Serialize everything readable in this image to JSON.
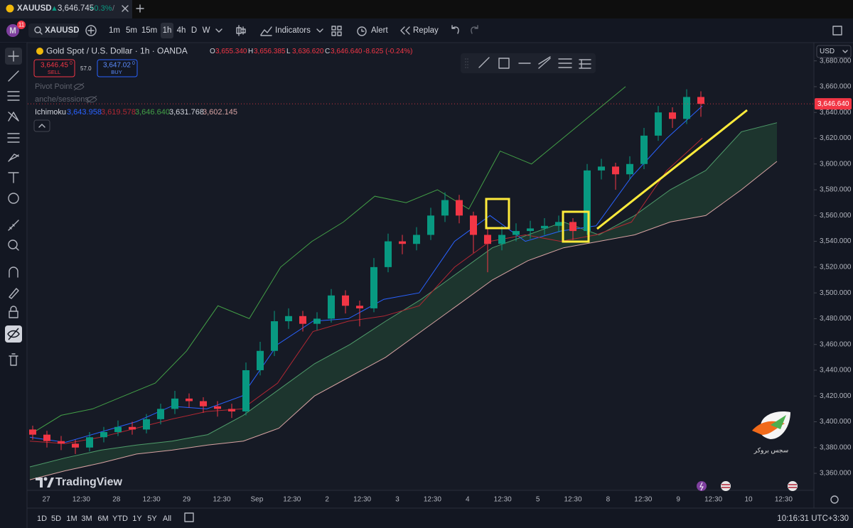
{
  "tab": {
    "symbol": "XAUUSD",
    "price": "3,646.745",
    "change": "+0.3%",
    "separator": "/"
  },
  "account": {
    "initial": "M",
    "badge": "11"
  },
  "toolbar": {
    "symbol": "XAUUSD",
    "intervals": [
      "1m",
      "5m",
      "15m",
      "1h",
      "4h",
      "D",
      "W"
    ],
    "active_interval": "1h",
    "indicators": "Indicators",
    "alert": "Alert",
    "replay": "Replay"
  },
  "legend": {
    "title": "Gold Spot / U.S. Dollar · 1h · OANDA",
    "ohlc": [
      {
        "key": "O",
        "value": "3,655.340"
      },
      {
        "key": "H",
        "value": "3,656.385"
      },
      {
        "key": "L",
        "value": "3,636.620"
      },
      {
        "key": "C",
        "value": "3,646.640"
      }
    ],
    "change": "-8.625 (-0.24%)",
    "sell": {
      "price": "3,646.45",
      "sup": "0",
      "label": "SELL"
    },
    "spread": "57.0",
    "buy": {
      "price": "3,647.02",
      "sup": "0",
      "label": "BUY"
    },
    "pivot": "Pivot Point",
    "sessions": "anche/sessions",
    "ichimoku": "Ichimoku",
    "ichimoku_values": [
      "3,643.958",
      "3,619.578",
      "3,646.640",
      "3,631.768",
      "3,602.145"
    ]
  },
  "chart_data": {
    "type": "candlestick",
    "ylim": [
      3346.8,
      3693.6
    ],
    "yticks": [
      {
        "value": 3680,
        "label": "3,680.000"
      },
      {
        "value": 3660,
        "label": "3,660.000"
      },
      {
        "value": 3640,
        "label": "3,640.000"
      },
      {
        "value": 3620,
        "label": "3,620.000"
      },
      {
        "value": 3600,
        "label": "3,600.000"
      },
      {
        "value": 3580,
        "label": "3,580.000"
      },
      {
        "value": 3560,
        "label": "3,560.000"
      },
      {
        "value": 3540,
        "label": "3,540.000"
      },
      {
        "value": 3520,
        "label": "3,520.000"
      },
      {
        "value": 3500,
        "label": "3,500.000"
      },
      {
        "value": 3480,
        "label": "3,480.000"
      },
      {
        "value": 3460,
        "label": "3,460.000"
      },
      {
        "value": 3440,
        "label": "3,440.000"
      },
      {
        "value": 3420,
        "label": "3,420.000"
      },
      {
        "value": 3400,
        "label": "3,400.000"
      },
      {
        "value": 3380,
        "label": "3,380.000"
      },
      {
        "value": 3360,
        "label": "3,360.000"
      }
    ],
    "currency": "USD",
    "last_price": {
      "value": 3646.64,
      "label": "3,646.640"
    },
    "time_labels": [
      "27",
      "12:30",
      "28",
      "12:30",
      "29",
      "12:30",
      "Sep",
      "12:30",
      "2",
      "12:30",
      "3",
      "12:30",
      "4",
      "12:30",
      "5",
      "12:30",
      "8",
      "12:30",
      "9",
      "12:30",
      "10",
      "12:30"
    ],
    "up_color": "#089981",
    "down_color": "#f23645",
    "candles": [
      [
        3394,
        3397,
        3386,
        3390
      ],
      [
        3390,
        3393,
        3380,
        3385
      ],
      [
        3385,
        3389,
        3378,
        3383
      ],
      [
        3383,
        3386,
        3375,
        3380
      ],
      [
        3380,
        3392,
        3377,
        3388
      ],
      [
        3388,
        3396,
        3384,
        3392
      ],
      [
        3392,
        3401,
        3389,
        3396
      ],
      [
        3396,
        3400,
        3390,
        3394
      ],
      [
        3394,
        3406,
        3391,
        3402
      ],
      [
        3402,
        3414,
        3398,
        3410
      ],
      [
        3410,
        3424,
        3406,
        3418
      ],
      [
        3418,
        3422,
        3411,
        3416
      ],
      [
        3416,
        3419,
        3407,
        3412
      ],
      [
        3412,
        3416,
        3404,
        3410
      ],
      [
        3410,
        3414,
        3403,
        3408
      ],
      [
        3408,
        3446,
        3405,
        3440
      ],
      [
        3440,
        3462,
        3436,
        3455
      ],
      [
        3455,
        3486,
        3451,
        3478
      ],
      [
        3478,
        3488,
        3472,
        3482
      ],
      [
        3482,
        3486,
        3470,
        3476
      ],
      [
        3476,
        3485,
        3471,
        3480
      ],
      [
        3480,
        3503,
        3477,
        3498
      ],
      [
        3498,
        3502,
        3484,
        3490
      ],
      [
        3490,
        3494,
        3474,
        3488
      ],
      [
        3488,
        3527,
        3485,
        3520
      ],
      [
        3520,
        3546,
        3516,
        3540
      ],
      [
        3540,
        3545,
        3530,
        3538
      ],
      [
        3538,
        3551,
        3533,
        3545
      ],
      [
        3545,
        3566,
        3541,
        3560
      ],
      [
        3560,
        3578,
        3555,
        3572
      ],
      [
        3572,
        3576,
        3554,
        3560
      ],
      [
        3560,
        3563,
        3531,
        3545
      ],
      [
        3545,
        3550,
        3516,
        3538
      ],
      [
        3538,
        3552,
        3533,
        3545
      ],
      [
        3545,
        3554,
        3540,
        3548
      ],
      [
        3548,
        3556,
        3542,
        3550
      ],
      [
        3550,
        3558,
        3545,
        3552
      ],
      [
        3552,
        3560,
        3547,
        3555
      ],
      [
        3555,
        3558,
        3541,
        3548
      ],
      [
        3548,
        3600,
        3545,
        3595
      ],
      [
        3595,
        3604,
        3588,
        3598
      ],
      [
        3598,
        3601,
        3580,
        3592
      ],
      [
        3592,
        3606,
        3588,
        3600
      ],
      [
        3600,
        3628,
        3596,
        3622
      ],
      [
        3622,
        3645,
        3618,
        3640
      ],
      [
        3640,
        3644,
        3628,
        3635
      ],
      [
        3635,
        3658,
        3631,
        3652
      ],
      [
        3652,
        3656.385,
        3636.62,
        3646.64
      ]
    ],
    "lines": [
      {
        "color": "#2962ff",
        "values": [
          3388,
          3384,
          3392,
          3400,
          3412,
          3410,
          3420,
          3460,
          3478,
          3480,
          3495,
          3500,
          3540,
          3560,
          3540,
          3548,
          3552,
          3590,
          3620,
          3645
        ]
      },
      {
        "color": "#b22833",
        "values": [
          3385,
          3383,
          3388,
          3395,
          3402,
          3408,
          3410,
          3430,
          3470,
          3478,
          3482,
          3490,
          3520,
          3540,
          3545,
          3540,
          3545,
          3555,
          3595,
          3620
        ]
      },
      {
        "color": "#43a047",
        "values": [
          3390,
          3405,
          3410,
          3420,
          3430,
          3455,
          3490,
          3480,
          3520,
          3540,
          3555,
          3575,
          3570,
          3580,
          3565,
          3610,
          3600,
          3620,
          3640,
          3660
        ]
      }
    ],
    "cloud": [
      {
        "color": "#4f9c6a",
        "values": [
          3365,
          3372,
          3378,
          3382,
          3385,
          3390,
          3405,
          3425,
          3445,
          3460,
          3478,
          3495,
          3515,
          3535,
          3545,
          3555,
          3545,
          3560,
          3580,
          3595,
          3625,
          3632
        ]
      },
      {
        "color": "#d8a3a3",
        "values": [
          3355,
          3362,
          3368,
          3375,
          3378,
          3382,
          3385,
          3395,
          3420,
          3435,
          3450,
          3470,
          3490,
          3510,
          3525,
          3535,
          3540,
          3545,
          3555,
          3560,
          3580,
          3602
        ]
      }
    ]
  },
  "watermark": "TradingView",
  "broker": "سجس بروکر",
  "bottom_bar": {
    "ranges": [
      "1D",
      "5D",
      "1M",
      "3M",
      "6M",
      "YTD",
      "1Y",
      "5Y",
      "All"
    ],
    "clock": "10:16:31 UTC+3:30"
  }
}
